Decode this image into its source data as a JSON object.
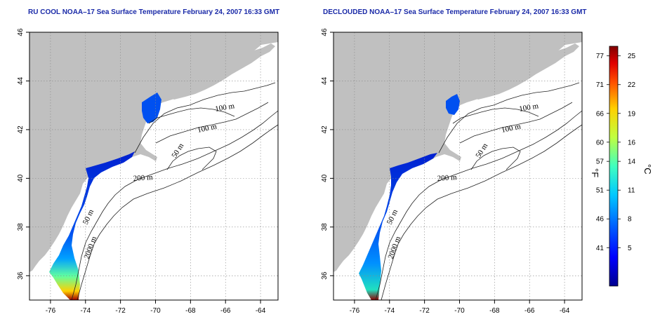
{
  "panels": [
    {
      "id": "left",
      "title": "RU COOL NOAA–17 Sea Surface Temperature February 24, 2007 16:33 GMT",
      "contour_labels": [
        "100 m",
        "100 m",
        "50 m",
        "200 m",
        "50 m",
        "2000 m"
      ]
    },
    {
      "id": "right",
      "title": "DECLOUDED NOAA–17 Sea Surface Temperature February 24, 2007 16:33 GMT",
      "contour_labels": [
        "100 m",
        "100 m",
        "50 m",
        "200 m",
        "50 m",
        "2000 m"
      ]
    }
  ],
  "map": {
    "lon_ticks": [
      "-76",
      "-74",
      "-72",
      "-70",
      "-68",
      "-66",
      "-64"
    ],
    "lat_ticks": [
      "46",
      "44",
      "42",
      "40",
      "38",
      "36"
    ],
    "lon_range": [
      -77.2,
      -63.0
    ],
    "lat_range": [
      35.0,
      46.0
    ],
    "land_color": "#c0c0c0",
    "grid": "dotted"
  },
  "colorbar": {
    "fahrenheit_label": "°F",
    "celsius_label": "°C",
    "fahrenheit_ticks": [
      "77",
      "71",
      "66",
      "60",
      "57",
      "51",
      "46",
      "41"
    ],
    "celsius_ticks": [
      "25",
      "22",
      "19",
      "16",
      "14",
      "11",
      "8",
      "5"
    ],
    "celsius_values": [
      25,
      22,
      19,
      16,
      14,
      11,
      8,
      5
    ],
    "range_c": [
      1,
      26
    ],
    "colors": [
      "#00008f",
      "#0000ff",
      "#0060ff",
      "#00c8ff",
      "#40ffbf",
      "#c0ff40",
      "#ffd000",
      "#ff5000",
      "#e00000",
      "#800000"
    ]
  }
}
